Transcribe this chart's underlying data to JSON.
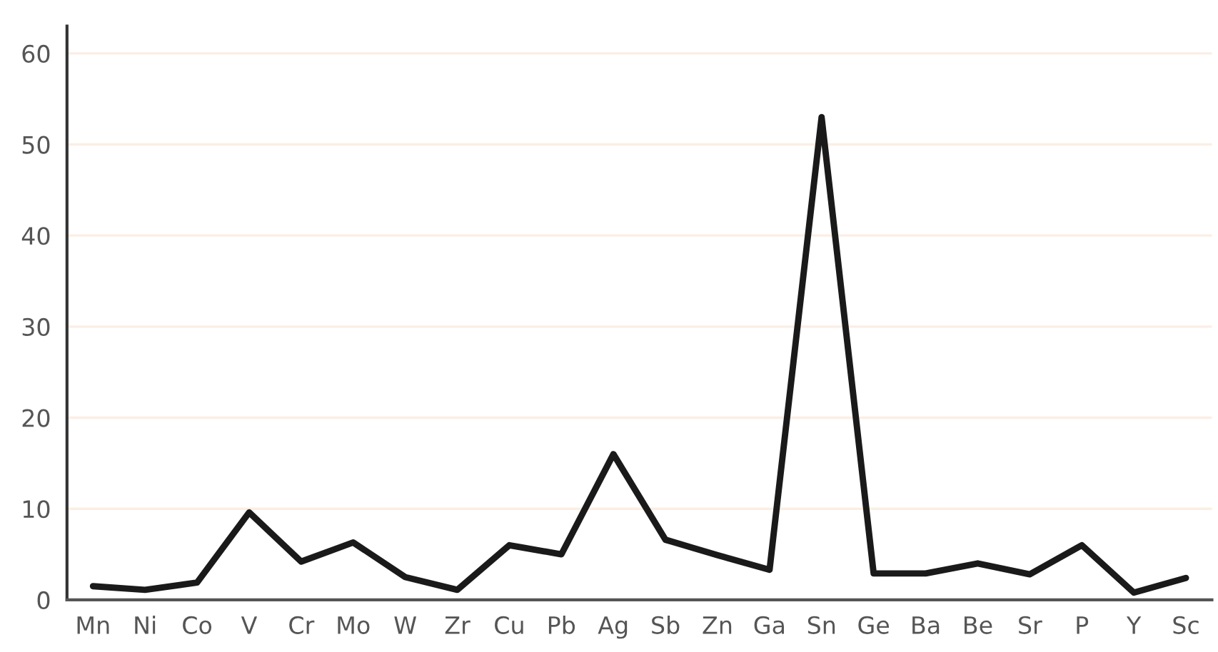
{
  "chart_data": {
    "type": "line",
    "categories": [
      "Mn",
      "Ni",
      "Co",
      "V",
      "Cr",
      "Mo",
      "W",
      "Zr",
      "Cu",
      "Pb",
      "Ag",
      "Sb",
      "Zn",
      "Ga",
      "Sn",
      "Ge",
      "Ba",
      "Be",
      "Sr",
      "P",
      "Y",
      "Sc"
    ],
    "series": [
      {
        "color": "#1a1a1a",
        "values": [
          1.5,
          1.1,
          1.9,
          9.6,
          4.2,
          6.3,
          2.5,
          1.1,
          6.0,
          5.0,
          16,
          6.6,
          4.9,
          3.3,
          53,
          2.9,
          2.9,
          4.0,
          2.8,
          6.0,
          0.8,
          2.4
        ]
      }
    ],
    "ylim": [
      0,
      63
    ],
    "yticks": [
      0,
      10,
      20,
      30,
      40,
      50,
      60
    ],
    "grid": "y",
    "marker": "none",
    "line_style": "solid"
  }
}
